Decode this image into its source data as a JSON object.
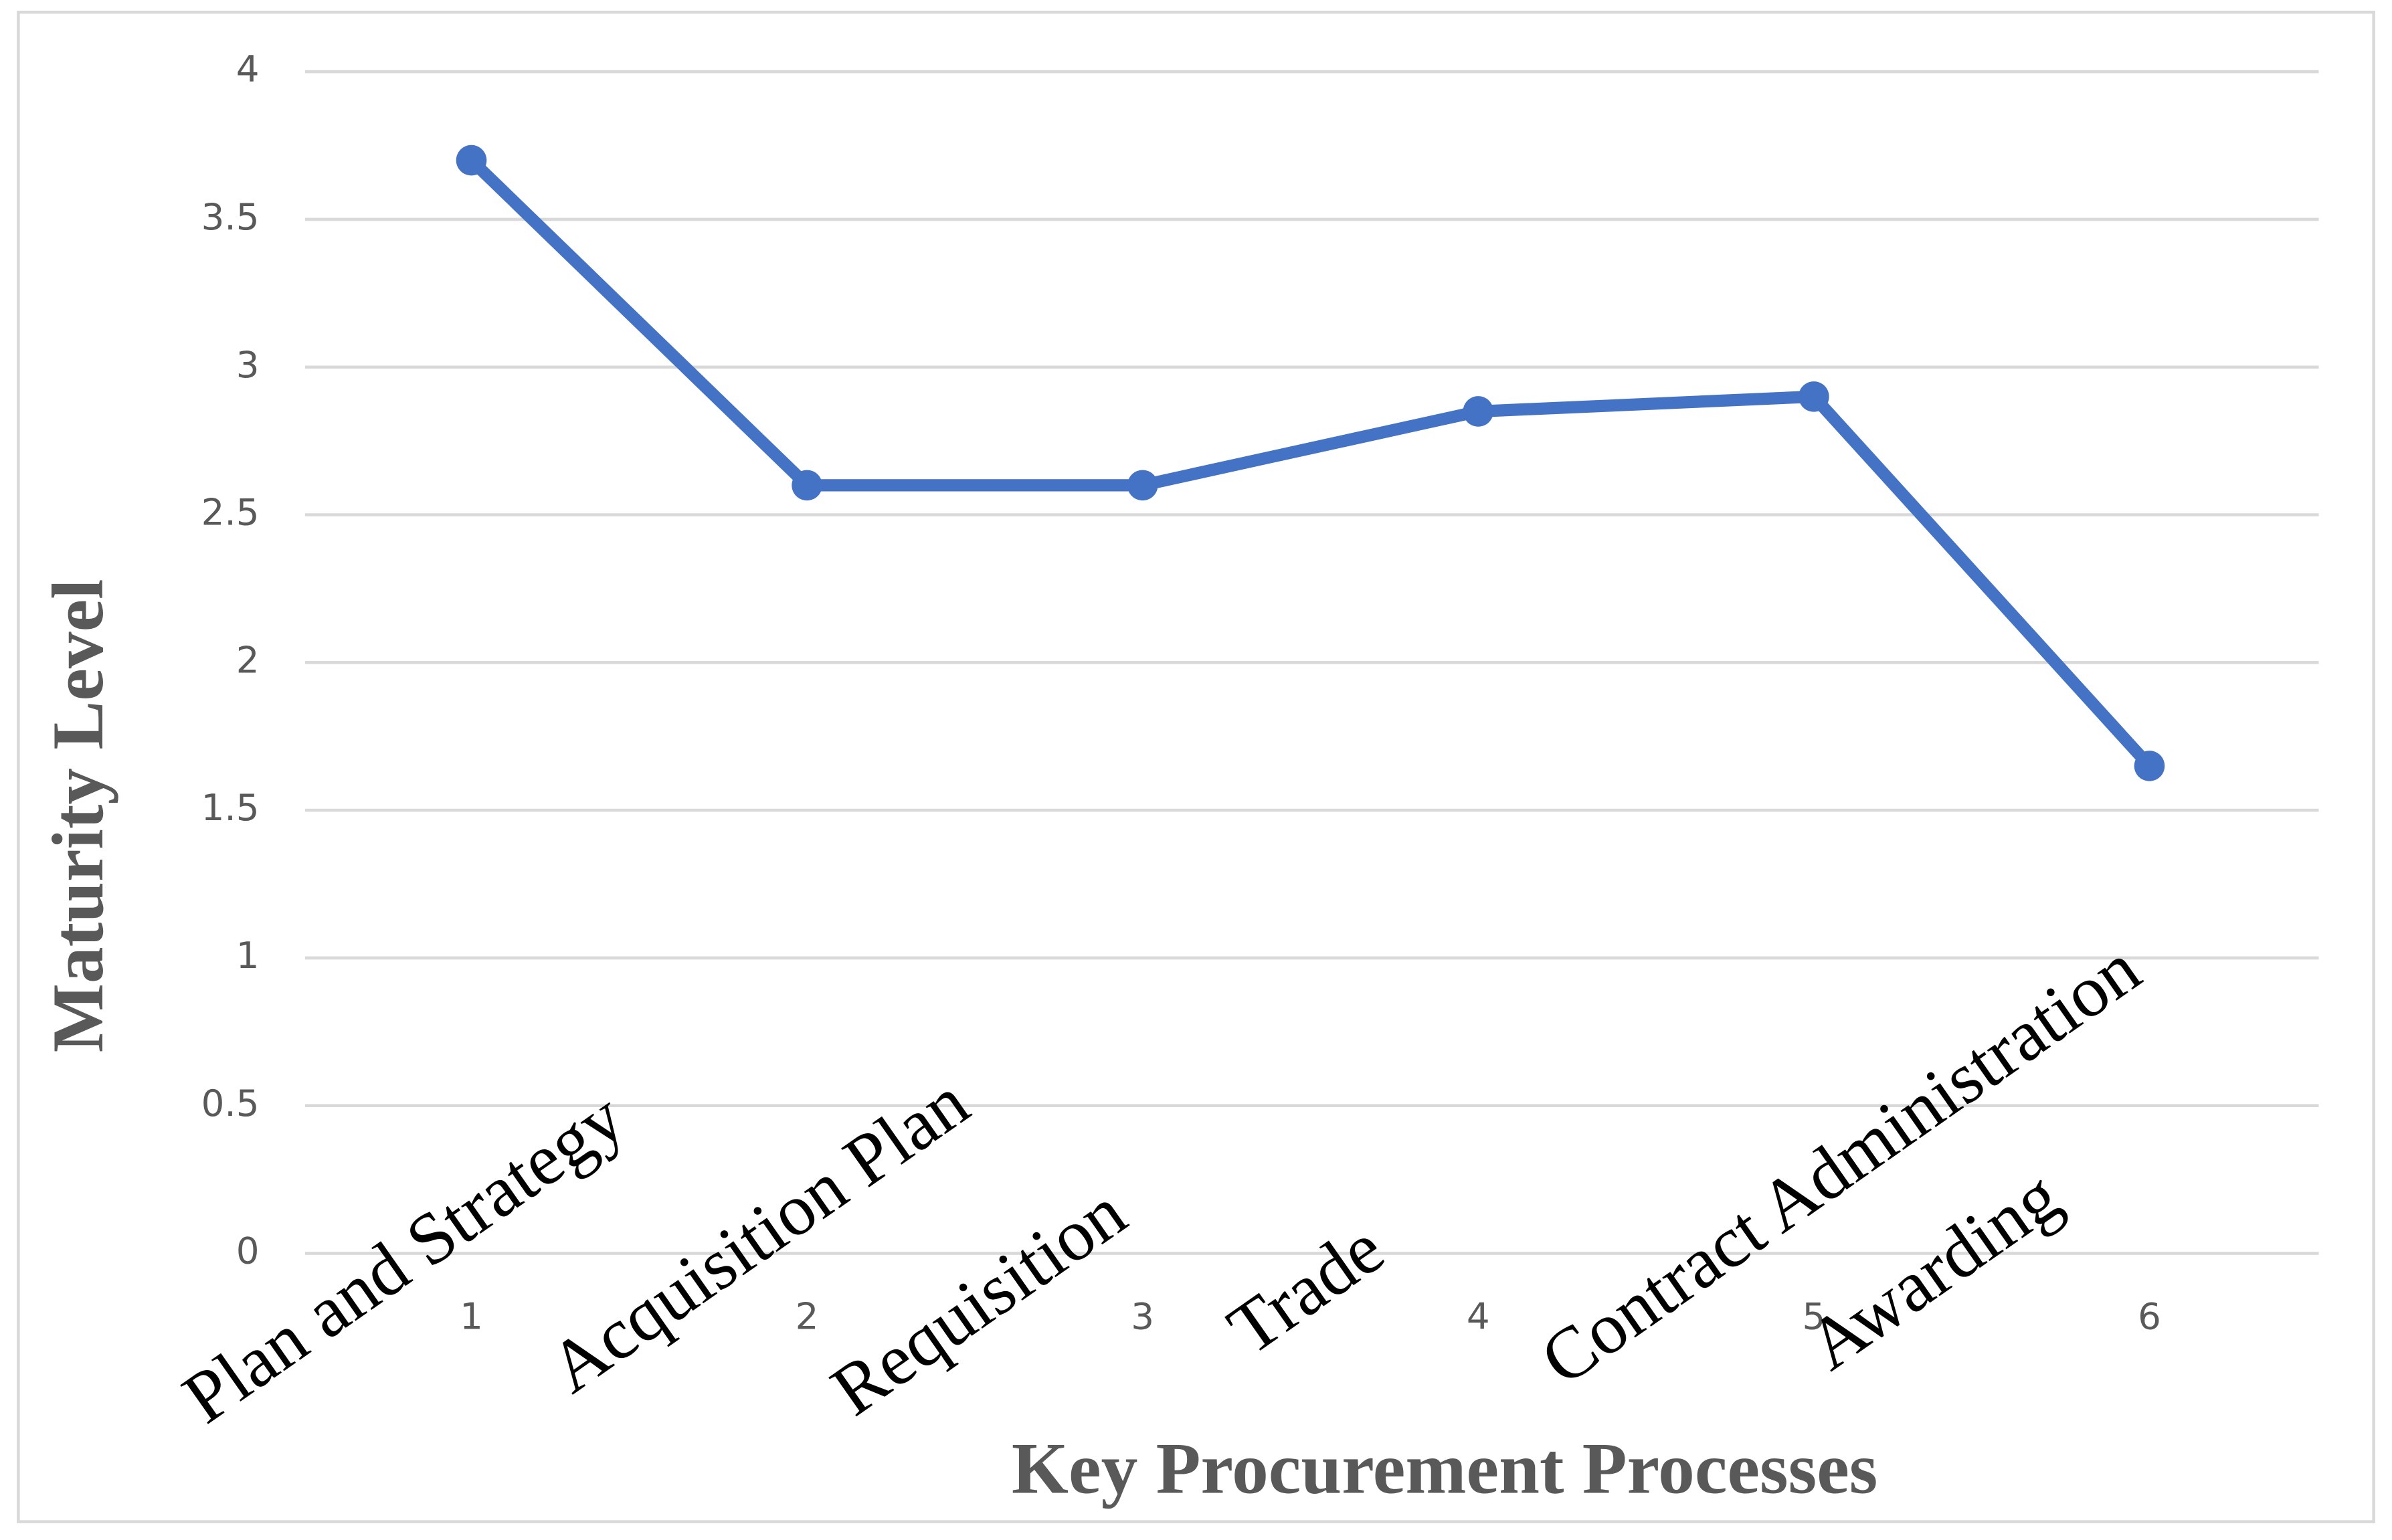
{
  "chart_data": {
    "type": "line",
    "x_label": "Key Procurement Processes",
    "y_label": "Maturity Level",
    "categories": [
      "1",
      "2",
      "3",
      "4",
      "5",
      "6"
    ],
    "annotations": [
      "Plan and Strategy",
      "Acquisition Plan",
      "Requisition",
      "Trade",
      "Contract Administration",
      "Awarding"
    ],
    "series": [
      {
        "name": "Maturity Level",
        "color": "#4472c4",
        "values": [
          3.7,
          2.6,
          2.6,
          2.85,
          2.9,
          1.65
        ]
      }
    ],
    "ylim": [
      0,
      4
    ],
    "yticks": [
      0,
      0.5,
      1,
      1.5,
      2,
      2.5,
      3,
      3.5,
      4
    ],
    "grid": true
  }
}
